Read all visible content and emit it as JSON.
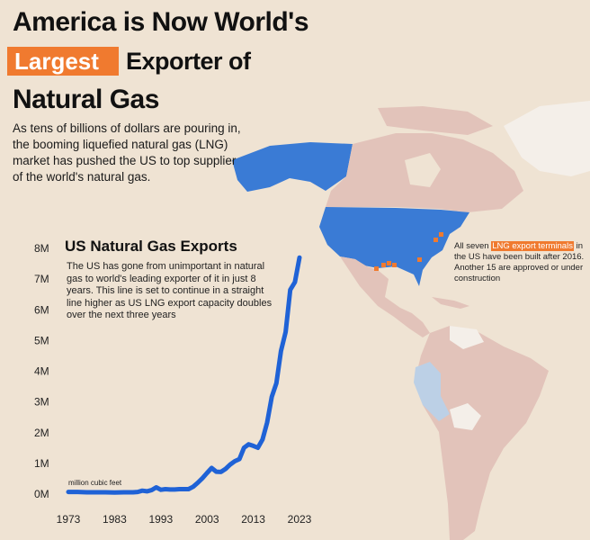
{
  "header": {
    "title_line1": "America is Now World's",
    "title_highlight": "Largest",
    "title_line2_rest": "Exporter of",
    "title_line3": "Natural Gas",
    "subtitle": "As tens of billions of dollars are pouring in, the booming liquefied natural gas (LNG) market has pushed the US to top supplier of the world's natural gas."
  },
  "annotation": {
    "prefix": "All seven ",
    "highlight": "LNG export terminals",
    "suffix": " in the US have been built after 2016. Another 15 are approved or under construction"
  },
  "colors": {
    "line": "#1f62d6",
    "us": "#3a7bd5",
    "land": "#e2c3ba",
    "highlight": "#f07a2f",
    "background": "#efe3d3"
  },
  "chart_data": {
    "type": "line",
    "title": "US Natural Gas Exports",
    "description": "The US has gone from unimportant in natural gas to world's leading exporter of it in just 8 years. This line is set to continue in a straight line higher as US LNG export capacity doubles over the next three years",
    "unit_label": "million cubic feet",
    "x_ticks": [
      "1973",
      "1983",
      "1993",
      "2003",
      "2013",
      "2023"
    ],
    "y_ticks": [
      "0M",
      "1M",
      "2M",
      "3M",
      "4M",
      "5M",
      "6M",
      "7M",
      "8M"
    ],
    "xlim": [
      1973,
      2023
    ],
    "ylim": [
      0,
      8
    ],
    "grid": false,
    "series": [
      {
        "x": [
          1973,
          1975,
          1977,
          1979,
          1981,
          1983,
          1985,
          1987,
          1988,
          1989,
          1990,
          1991,
          1992,
          1993,
          1994,
          1995,
          1996,
          1997,
          1998,
          1999,
          2000,
          2001,
          2002,
          2003,
          2004,
          2005,
          2006,
          2007,
          2008,
          2009,
          2010,
          2011,
          2012,
          2013,
          2014,
          2015,
          2016,
          2017,
          2018,
          2019,
          2020,
          2021,
          2022,
          2023
        ],
        "y": [
          0.07,
          0.07,
          0.06,
          0.06,
          0.06,
          0.05,
          0.06,
          0.06,
          0.07,
          0.11,
          0.09,
          0.13,
          0.22,
          0.14,
          0.16,
          0.15,
          0.15,
          0.16,
          0.16,
          0.16,
          0.24,
          0.37,
          0.52,
          0.69,
          0.85,
          0.73,
          0.72,
          0.82,
          0.96,
          1.07,
          1.14,
          1.51,
          1.62,
          1.57,
          1.51,
          1.78,
          2.33,
          3.17,
          3.61,
          4.66,
          5.28,
          6.65,
          6.9,
          7.7
        ]
      }
    ]
  }
}
